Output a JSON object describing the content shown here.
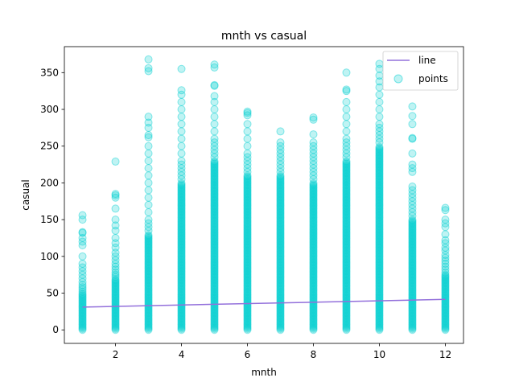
{
  "chart_data": {
    "type": "scatter",
    "title": "mnth vs casual",
    "xlabel": "mnth",
    "ylabel": "casual",
    "xlim": [
      0.45,
      12.55
    ],
    "ylim": [
      -18.35,
      385.35
    ],
    "xticks": [
      2,
      4,
      6,
      8,
      10,
      12
    ],
    "yticks": [
      0,
      50,
      100,
      150,
      200,
      250,
      300,
      350
    ],
    "grid": false,
    "legend_position": "upper-right",
    "colors": {
      "line": "#9370db",
      "points": "#00ced1"
    },
    "series": [
      {
        "name": "line",
        "kind": "line",
        "x": [
          1,
          12
        ],
        "y": [
          31,
          41.5
        ]
      },
      {
        "name": "points",
        "kind": "scatter",
        "columns": [
          {
            "x": 1,
            "dense_max": 50,
            "y": [
              52,
              55,
              58,
              61,
              65,
              70,
              75,
              80,
              85,
              90,
              100,
              115,
              120,
              125,
              132,
              133,
              150,
              156
            ]
          },
          {
            "x": 2,
            "dense_max": 70,
            "y": [
              72,
              75,
              78,
              82,
              86,
              90,
              95,
              100,
              105,
              112,
              118,
              125,
              135,
              142,
              150,
              165,
              180,
              183,
              185,
              229
            ]
          },
          {
            "x": 3,
            "dense_max": 130,
            "y": [
              135,
              140,
              145,
              150,
              160,
              170,
              180,
              190,
              200,
              210,
              220,
              230,
              240,
              250,
              262,
              265,
              275,
              282,
              290,
              352,
              356,
              368
            ]
          },
          {
            "x": 4,
            "dense_max": 200,
            "y": [
              205,
              210,
              215,
              220,
              225,
              230,
              240,
              250,
              260,
              270,
              280,
              290,
              300,
              310,
              320,
              326,
              355
            ]
          },
          {
            "x": 5,
            "dense_max": 230,
            "y": [
              235,
              240,
              245,
              250,
              255,
              260,
              270,
              280,
              290,
              300,
              310,
              318,
              332,
              333,
              357,
              361
            ]
          },
          {
            "x": 6,
            "dense_max": 210,
            "y": [
              215,
              220,
              225,
              230,
              235,
              240,
              250,
              260,
              270,
              280,
              292,
              295,
              297
            ]
          },
          {
            "x": 7,
            "dense_max": 210,
            "y": [
              215,
              220,
              225,
              230,
              235,
              240,
              245,
              250,
              255,
              270
            ]
          },
          {
            "x": 8,
            "dense_max": 200,
            "y": [
              205,
              210,
              215,
              220,
              225,
              230,
              235,
              240,
              245,
              250,
              255,
              266,
              286,
              289
            ]
          },
          {
            "x": 9,
            "dense_max": 230,
            "y": [
              235,
              240,
              245,
              250,
              255,
              260,
              270,
              280,
              290,
              300,
              310,
              325,
              327,
              350
            ]
          },
          {
            "x": 10,
            "dense_max": 250,
            "y": [
              255,
              260,
              265,
              270,
              275,
              280,
              290,
              300,
              310,
              320,
              330,
              338,
              346,
              355,
              362
            ]
          },
          {
            "x": 11,
            "dense_max": 150,
            "y": [
              155,
              160,
              165,
              170,
              175,
              180,
              185,
              190,
              195,
              215,
              220,
              225,
              240,
              260,
              261,
              280,
              291,
              304
            ]
          },
          {
            "x": 12,
            "dense_max": 75,
            "y": [
              78,
              82,
              86,
              90,
              94,
              98,
              102,
              108,
              112,
              118,
              122,
              130,
              140,
              145,
              150,
              163,
              166
            ]
          }
        ]
      }
    ]
  }
}
